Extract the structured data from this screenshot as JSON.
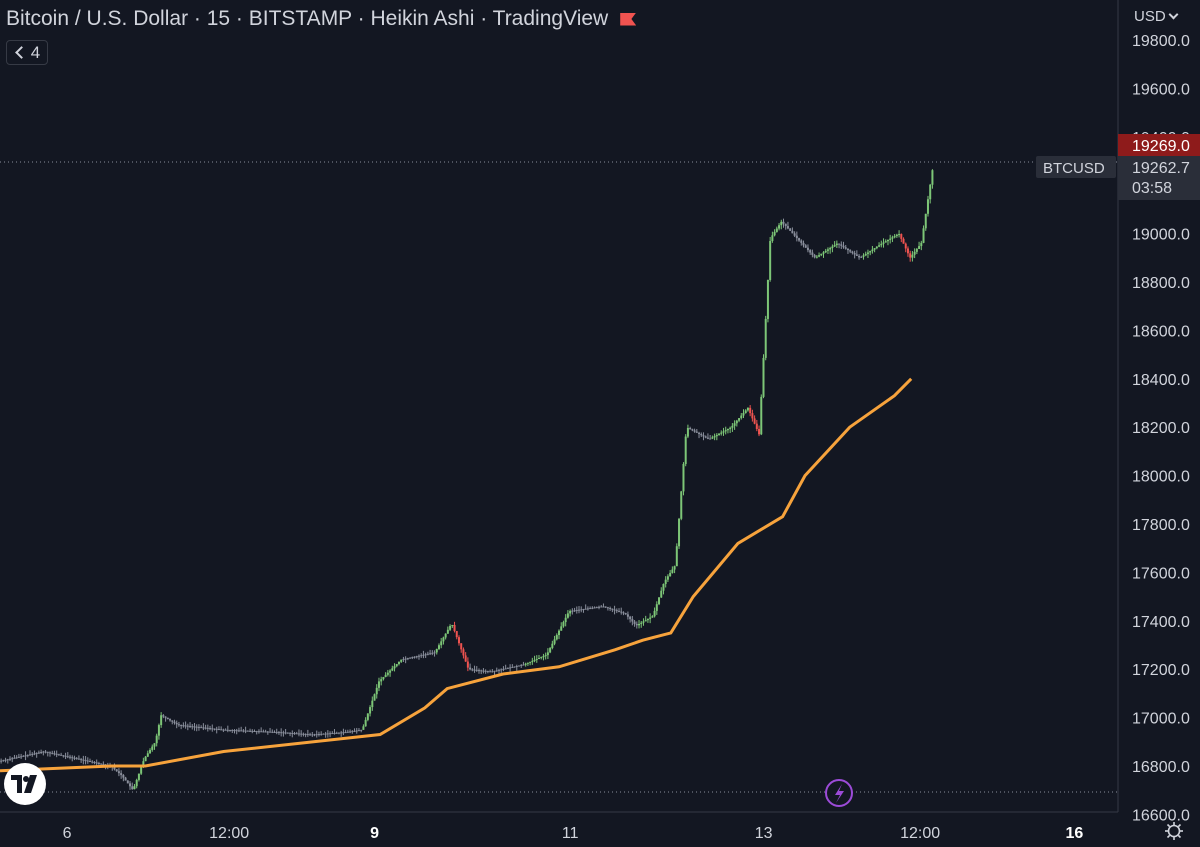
{
  "header": {
    "title": "Bitcoin / U.S. Dollar · 15 · BITSTAMP · Heikin Ashi · TradingView",
    "indicator_count": "4"
  },
  "currency_label": "USD",
  "price_scale": {
    "last_price": "19269.0",
    "symbol_label": "BTCUSD",
    "symbol_price": "19262.7",
    "countdown": "03:58"
  },
  "colors": {
    "background": "#131722",
    "up": "#7dc677",
    "down": "#ef5350",
    "neutral": "#8a8f9c",
    "ma": "#f7a33c",
    "last_price_bg": "#8e1b1b"
  },
  "chart_data": {
    "type": "candlestick",
    "title": "Bitcoin / U.S. Dollar · 15 · BITSTAMP · Heikin Ashi · TradingView",
    "ylim": [
      16600,
      19900
    ],
    "y_ticks": [
      "19800.0",
      "19600.0",
      "19400.0",
      "19200.0",
      "19000.0",
      "18800.0",
      "18600.0",
      "18400.0",
      "18200.0",
      "18000.0",
      "17800.0",
      "17600.0",
      "17400.0",
      "17200.0",
      "17000.0",
      "16800.0",
      "16600.0"
    ],
    "x_ticks": [
      {
        "label": "6",
        "bold": false,
        "t": 0.06
      },
      {
        "label": "12:00",
        "bold": false,
        "t": 0.205
      },
      {
        "label": "9",
        "bold": true,
        "t": 0.335
      },
      {
        "label": "11",
        "bold": false,
        "t": 0.51
      },
      {
        "label": "13",
        "bold": false,
        "t": 0.683
      },
      {
        "label": "12:00",
        "bold": false,
        "t": 0.823
      },
      {
        "label": "16",
        "bold": true,
        "t": 0.961
      }
    ],
    "price_series": [
      [
        0.0,
        16820
      ],
      [
        0.02,
        16840
      ],
      [
        0.04,
        16860
      ],
      [
        0.06,
        16840
      ],
      [
        0.08,
        16820
      ],
      [
        0.1,
        16800
      ],
      [
        0.11,
        16760
      ],
      [
        0.12,
        16700
      ],
      [
        0.13,
        16830
      ],
      [
        0.14,
        16900
      ],
      [
        0.145,
        17010
      ],
      [
        0.16,
        16970
      ],
      [
        0.2,
        16950
      ],
      [
        0.25,
        16940
      ],
      [
        0.28,
        16930
      ],
      [
        0.31,
        16940
      ],
      [
        0.325,
        16950
      ],
      [
        0.34,
        17150
      ],
      [
        0.36,
        17240
      ],
      [
        0.39,
        17270
      ],
      [
        0.405,
        17390
      ],
      [
        0.42,
        17200
      ],
      [
        0.44,
        17190
      ],
      [
        0.47,
        17220
      ],
      [
        0.49,
        17260
      ],
      [
        0.51,
        17440
      ],
      [
        0.54,
        17460
      ],
      [
        0.56,
        17430
      ],
      [
        0.57,
        17380
      ],
      [
        0.585,
        17420
      ],
      [
        0.595,
        17560
      ],
      [
        0.605,
        17630
      ],
      [
        0.615,
        18200
      ],
      [
        0.635,
        18150
      ],
      [
        0.655,
        18200
      ],
      [
        0.67,
        18280
      ],
      [
        0.68,
        18170
      ],
      [
        0.69,
        18980
      ],
      [
        0.7,
        19050
      ],
      [
        0.73,
        18900
      ],
      [
        0.75,
        18960
      ],
      [
        0.77,
        18900
      ],
      [
        0.79,
        18960
      ],
      [
        0.805,
        19000
      ],
      [
        0.815,
        18900
      ],
      [
        0.825,
        18960
      ],
      [
        0.835,
        19262
      ]
    ],
    "ma_series": [
      [
        0.0,
        16780
      ],
      [
        0.1,
        16800
      ],
      [
        0.13,
        16800
      ],
      [
        0.2,
        16860
      ],
      [
        0.3,
        16910
      ],
      [
        0.34,
        16930
      ],
      [
        0.38,
        17040
      ],
      [
        0.4,
        17120
      ],
      [
        0.45,
        17180
      ],
      [
        0.5,
        17210
      ],
      [
        0.55,
        17280
      ],
      [
        0.575,
        17320
      ],
      [
        0.6,
        17350
      ],
      [
        0.62,
        17500
      ],
      [
        0.66,
        17720
      ],
      [
        0.7,
        17830
      ],
      [
        0.72,
        18000
      ],
      [
        0.76,
        18200
      ],
      [
        0.8,
        18330
      ],
      [
        0.815,
        18400
      ]
    ],
    "grid": false,
    "legend": "none"
  }
}
